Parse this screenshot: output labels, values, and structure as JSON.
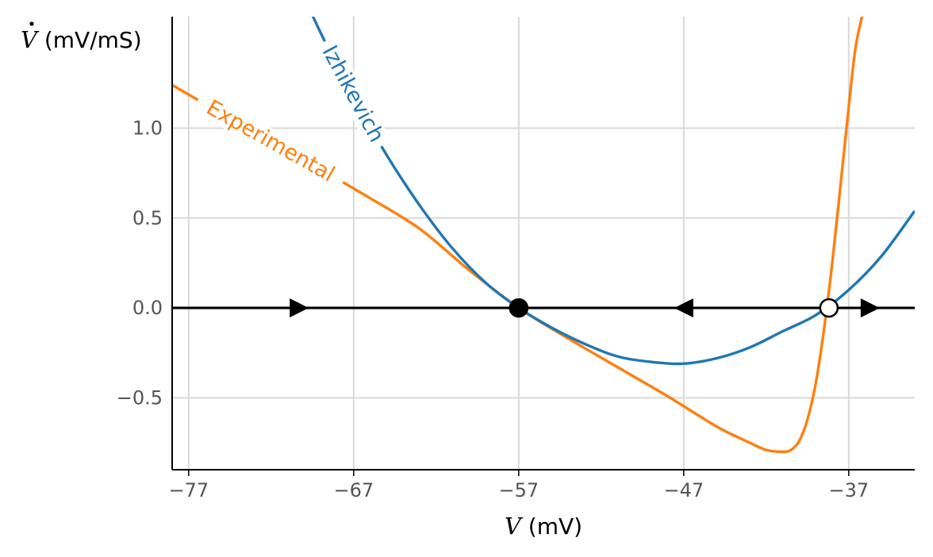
{
  "chart_data": {
    "type": "line",
    "title": "",
    "xlabel": {
      "var": "V",
      "unit": " (mV)"
    },
    "ylabel": {
      "var": "V",
      "unit": " (mV/mS)",
      "dot": "dotted"
    },
    "xlim": [
      -78,
      -33
    ],
    "ylim": [
      -0.9,
      1.62
    ],
    "xticks": [
      -77,
      -67,
      -57,
      -47,
      -37
    ],
    "xtick_labels": [
      "−77",
      "−67",
      "−57",
      "−47",
      "−37"
    ],
    "yticks": [
      -0.5,
      0.0,
      0.5,
      1.0
    ],
    "ytick_labels": [
      "−0.5",
      "0.0",
      "0.5",
      "1.0"
    ],
    "grid": true,
    "series": [
      {
        "name": "Izhikevich",
        "label": "Izhikevich",
        "color": "#1f77b4",
        "x": [
          -71,
          -69,
          -67,
          -65,
          -63,
          -61,
          -59,
          -57,
          -55,
          -53,
          -51,
          -49,
          -47,
          -45,
          -43,
          -41,
          -39,
          -37,
          -35,
          -33
        ],
        "y": [
          1.93,
          1.53,
          1.17,
          0.85,
          0.57,
          0.33,
          0.14,
          0.0,
          -0.11,
          -0.2,
          -0.27,
          -0.3,
          -0.31,
          -0.28,
          -0.22,
          -0.13,
          -0.04,
          0.1,
          0.29,
          0.54
        ]
      },
      {
        "name": "Experimental",
        "label": "Experimental",
        "color": "#ff7f0e",
        "x": [
          -78,
          -75,
          -72,
          -69,
          -66,
          -63,
          -60,
          -57,
          -54,
          -51,
          -48,
          -45,
          -43,
          -42,
          -41,
          -40.5,
          -40,
          -39.5,
          -39,
          -38.5,
          -38,
          -37.5,
          -37,
          -36.6,
          -36.2,
          -36
        ],
        "y": [
          1.24,
          1.08,
          0.92,
          0.77,
          0.61,
          0.44,
          0.21,
          0.0,
          -0.17,
          -0.33,
          -0.49,
          -0.66,
          -0.75,
          -0.79,
          -0.8,
          -0.79,
          -0.74,
          -0.62,
          -0.42,
          -0.12,
          0.25,
          0.68,
          1.12,
          1.44,
          1.62,
          1.7
        ]
      }
    ],
    "zero_line": {
      "y": 0.0,
      "color": "#000000"
    },
    "fixed_points": [
      {
        "x": -57,
        "y": 0.0,
        "kind": "stable",
        "fill": "#000000"
      },
      {
        "x": -38.2,
        "y": 0.0,
        "kind": "unstable",
        "fill": "#ffffff"
      }
    ],
    "flow_arrows": [
      {
        "x": -70.3,
        "direction": "right"
      },
      {
        "x": -47,
        "direction": "left"
      },
      {
        "x": -35.7,
        "direction": "right"
      }
    ]
  }
}
